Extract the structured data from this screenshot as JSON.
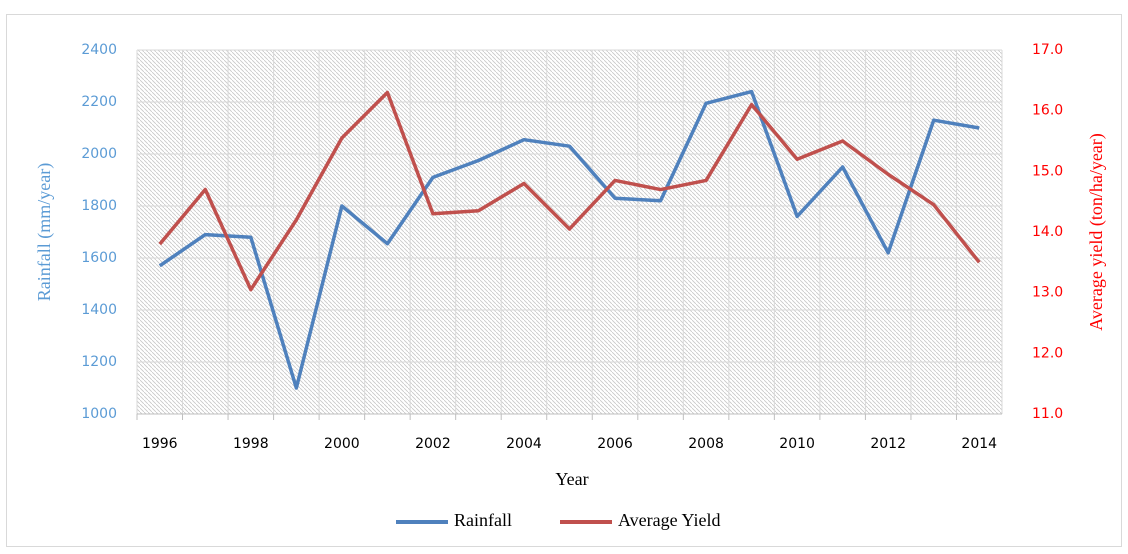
{
  "chart_data": {
    "type": "line",
    "x_label": "Year",
    "y_label": "Rainfall (mm/year)",
    "y2_label": "Average yield (ton/ha/year)",
    "categories": [
      "1996",
      null,
      "1998",
      null,
      "2000",
      null,
      "2002",
      null,
      "2004",
      null,
      "2006",
      null,
      "2008",
      null,
      "2010",
      null,
      "2012",
      null,
      "2014"
    ],
    "series": [
      {
        "name": "Rainfall",
        "color": "#4f81bd",
        "values": [
          1570,
          1690,
          1680,
          1100,
          1800,
          1655,
          1910,
          1975,
          2055,
          2030,
          1830,
          1820,
          2195,
          2240,
          1760,
          1950,
          1620,
          2130,
          2100
        ]
      },
      {
        "name": "Average Yield",
        "color": "#c0504d",
        "axis": "y2",
        "values": [
          13.8,
          14.7,
          13.05,
          14.2,
          15.55,
          16.3,
          14.3,
          14.35,
          14.8,
          14.05,
          14.85,
          14.7,
          14.85,
          16.1,
          15.2,
          15.5,
          14.95,
          14.45,
          13.5
        ]
      }
    ],
    "ylim": [
      1000,
      2400
    ],
    "yticks": [
      1000,
      1200,
      1400,
      1600,
      1800,
      2000,
      2200,
      2400
    ],
    "y2lim": [
      11,
      17
    ],
    "y2ticks": [
      {
        "value": 11,
        "label": "11.0"
      },
      {
        "value": 12,
        "label": "12.0"
      },
      {
        "value": 13,
        "label": "13.0"
      },
      {
        "value": 14,
        "label": "14.0"
      },
      {
        "value": 15,
        "label": "15.0"
      },
      {
        "value": 16,
        "label": "16.0"
      },
      {
        "value": 17,
        "label": "17.0"
      }
    ],
    "y_tick_color": "#5b9bd5",
    "y2_tick_color": "#ff0000",
    "grid": true,
    "legend": "bottom"
  }
}
